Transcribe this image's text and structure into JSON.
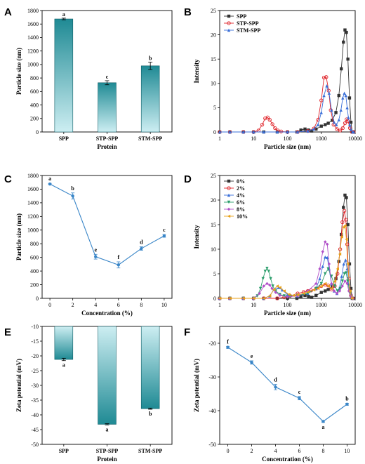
{
  "chart_data": [
    {
      "panel": "A",
      "type": "bar",
      "categories": [
        "SPP",
        "STP-SPP",
        "STM-SPP"
      ],
      "values": [
        1675,
        730,
        980
      ],
      "errors": [
        12,
        30,
        55
      ],
      "letters": [
        "a",
        "c",
        "b"
      ],
      "xlabel": "Protein",
      "ylabel": "Particle size (nm)",
      "ylim": [
        0,
        1800
      ],
      "yticks": [
        0,
        200,
        400,
        600,
        800,
        1000,
        1200,
        1400,
        1600,
        1800
      ],
      "bar_color": "#1f8a94"
    },
    {
      "panel": "B",
      "type": "line",
      "xscale": "log",
      "xlim": [
        1,
        10000
      ],
      "xticks": [
        1,
        10,
        100,
        1000,
        10000
      ],
      "ylim": [
        0,
        25
      ],
      "yticks": [
        0,
        5,
        10,
        15,
        20,
        25
      ],
      "xlabel": "Particle size (nm)",
      "ylabel": "Intensity",
      "legend": "top-left",
      "series": [
        {
          "name": "SPP",
          "color": "#333333",
          "marker": "square",
          "x": [
            1,
            2,
            5,
            10,
            20,
            50,
            100,
            190,
            250,
            330,
            420,
            520,
            700,
            1000,
            1300,
            1600,
            2100,
            2700,
            3300,
            3900,
            4500,
            5000,
            5500,
            6100,
            6800,
            7500,
            8200,
            9000
          ],
          "y": [
            0,
            0,
            0,
            0,
            0,
            0,
            0,
            0,
            0.4,
            0.6,
            0.4,
            0.2,
            0.6,
            1.2,
            1.5,
            1.8,
            2.4,
            4.0,
            7.5,
            13.0,
            18.5,
            21.0,
            20.5,
            15.0,
            7.0,
            2.0,
            0,
            0
          ]
        },
        {
          "name": "STP-SPP",
          "color": "#e0252b",
          "marker": "circle",
          "x": [
            1,
            2,
            5,
            10,
            14,
            18,
            22,
            26,
            30,
            36,
            43,
            52,
            65,
            100,
            200,
            400,
            600,
            800,
            1000,
            1200,
            1400,
            1650,
            1900,
            2300,
            2900,
            3600,
            4300,
            5000,
            5600,
            6200,
            7000,
            8000,
            9000
          ],
          "y": [
            0,
            0,
            0,
            0,
            0.3,
            1.5,
            2.8,
            3.0,
            2.5,
            1.6,
            0.8,
            0.3,
            0.1,
            0,
            0,
            0.2,
            0.7,
            2.5,
            6.5,
            11.2,
            11.3,
            8.5,
            4.5,
            1.5,
            0.6,
            0.3,
            0.8,
            1.8,
            2.6,
            2.2,
            0.8,
            0,
            0
          ]
        },
        {
          "name": "STM-SPP",
          "color": "#3a6fd8",
          "marker": "triangle",
          "x": [
            1,
            2,
            5,
            10,
            20,
            50,
            100,
            200,
            400,
            600,
            800,
            1000,
            1200,
            1450,
            1700,
            2000,
            2400,
            2800,
            3300,
            3800,
            4300,
            4800,
            5300,
            5800,
            6300,
            6900,
            7600,
            8400,
            9000
          ],
          "y": [
            0,
            0,
            0,
            0,
            0,
            0,
            0,
            0,
            0.2,
            0.6,
            1.5,
            4.0,
            7.5,
            9.5,
            8.0,
            4.5,
            2.0,
            1.5,
            2.5,
            4.5,
            7.0,
            8.0,
            7.5,
            5.0,
            3.0,
            1.5,
            0.5,
            0,
            0
          ]
        }
      ]
    },
    {
      "panel": "C",
      "type": "line",
      "x": [
        0,
        2,
        4,
        6,
        8,
        10
      ],
      "values": [
        1675,
        1500,
        610,
        490,
        730,
        915
      ],
      "errors": [
        10,
        45,
        35,
        45,
        25,
        20
      ],
      "letters": [
        "a",
        "b",
        "e",
        "f",
        "d",
        "c"
      ],
      "xlabel": "Concentration (%)",
      "ylabel": "Particle size (nm)",
      "xlim": [
        0,
        10
      ],
      "xticks": [
        0,
        2,
        4,
        6,
        8,
        10
      ],
      "ylim": [
        0,
        1800
      ],
      "yticks": [
        0,
        200,
        400,
        600,
        800,
        1000,
        1200,
        1400,
        1600,
        1800
      ],
      "color": "#3a86c8"
    },
    {
      "panel": "D",
      "type": "line",
      "xscale": "log",
      "xlim": [
        1,
        10000
      ],
      "xticks": [
        1,
        10,
        100,
        1000,
        10000
      ],
      "ylim": [
        0,
        25
      ],
      "yticks": [
        0,
        5,
        10,
        15,
        20,
        25
      ],
      "xlabel": "Particle size (nm)",
      "ylabel": "Intensity",
      "legend": "top-left",
      "series": [
        {
          "name": "0%",
          "color": "#333333",
          "marker": "square",
          "x": [
            1,
            2,
            5,
            10,
            20,
            50,
            100,
            190,
            250,
            330,
            420,
            520,
            700,
            1000,
            1300,
            1600,
            2100,
            2700,
            3300,
            3900,
            4500,
            5000,
            5500,
            6100,
            6800,
            7500,
            8200,
            9000
          ],
          "y": [
            0,
            0,
            0,
            0,
            0,
            0,
            0,
            0,
            0.4,
            0.6,
            0.4,
            0.2,
            0.6,
            1.2,
            1.5,
            1.8,
            2.4,
            4.0,
            7.5,
            13.0,
            18.5,
            21.0,
            20.5,
            15.0,
            7.0,
            2.0,
            0,
            0
          ]
        },
        {
          "name": "2%",
          "color": "#e0252b",
          "marker": "circle",
          "x": [
            1,
            2,
            5,
            10,
            20,
            50,
            80,
            120,
            200,
            300,
            400,
            500,
            700,
            1000,
            1300,
            1600,
            2000,
            2500,
            3000,
            3600,
            4200,
            4800,
            5300,
            5800,
            6500,
            7500,
            8500
          ],
          "y": [
            0,
            0,
            0,
            0,
            0,
            0,
            0.2,
            0.5,
            1.0,
            1.3,
            1.5,
            1.6,
            2.0,
            2.5,
            2.8,
            2.6,
            1.8,
            2.5,
            5.0,
            10.0,
            15.5,
            17.8,
            16.0,
            11.0,
            4.0,
            0.6,
            0
          ]
        },
        {
          "name": "4%",
          "color": "#3a6fd8",
          "marker": "triangle",
          "x": [
            1,
            2,
            5,
            10,
            20,
            30,
            40,
            55,
            70,
            100,
            200,
            400,
            700,
            900,
            1100,
            1300,
            1500,
            1700,
            2000,
            2400,
            2900,
            3400,
            4000,
            4600,
            5200,
            5800,
            6500,
            7500,
            8500
          ],
          "y": [
            0,
            0,
            0,
            0,
            0,
            0.5,
            1.8,
            2.2,
            1.7,
            0.8,
            0.5,
            1.0,
            2.0,
            4.0,
            6.5,
            8.4,
            8.3,
            6.0,
            3.0,
            1.5,
            1.0,
            2.0,
            4.5,
            7.0,
            7.8,
            6.0,
            3.0,
            0.8,
            0
          ]
        },
        {
          "name": "6%",
          "color": "#2a9d6a",
          "marker": "triangle-down",
          "x": [
            1,
            2,
            5,
            10,
            13,
            16,
            19,
            22,
            25,
            28,
            32,
            37,
            45,
            60,
            80,
            120,
            200,
            400,
            700,
            1000,
            1300,
            1600,
            2000,
            2500,
            3000,
            3600,
            4200,
            4800,
            5400,
            6000,
            7000,
            8000
          ],
          "y": [
            0,
            0,
            0,
            0,
            0.5,
            2.0,
            4.0,
            5.5,
            6.1,
            5.5,
            4.0,
            2.5,
            1.5,
            0.8,
            0.5,
            0.4,
            0.6,
            1.0,
            2.0,
            3.0,
            5.0,
            6.0,
            4.5,
            2.5,
            1.5,
            2.0,
            3.5,
            5.0,
            5.2,
            3.5,
            1.0,
            0
          ]
        },
        {
          "name": "8%",
          "color": "#b04fc8",
          "marker": "diamond",
          "x": [
            1,
            2,
            5,
            10,
            15,
            20,
            25,
            30,
            35,
            45,
            60,
            100,
            200,
            400,
            700,
            900,
            1100,
            1300,
            1500,
            1700,
            2000,
            2400,
            2900,
            3500,
            4200,
            5000,
            5800,
            6500,
            7500,
            8500
          ],
          "y": [
            0,
            0,
            0,
            0,
            1.0,
            2.5,
            3.0,
            2.7,
            2.0,
            1.2,
            0.6,
            0.3,
            0.5,
            1.5,
            3.0,
            6.0,
            9.5,
            11.5,
            11.0,
            7.0,
            3.0,
            1.5,
            1.0,
            1.5,
            2.5,
            3.5,
            3.0,
            1.5,
            0.3,
            0
          ]
        },
        {
          "name": "10%",
          "color": "#e8a21a",
          "marker": "triangle-left",
          "x": [
            1,
            2,
            5,
            10,
            20,
            30,
            40,
            50,
            60,
            80,
            110,
            150,
            200,
            300,
            400,
            600,
            800,
            1000,
            1300,
            1600,
            2000,
            2500,
            3000,
            3500,
            4000,
            4500,
            5000,
            5500,
            6000,
            7000,
            8000
          ],
          "y": [
            0,
            0,
            0,
            0,
            0,
            0.5,
            1.8,
            2.5,
            2.2,
            1.5,
            0.8,
            0.6,
            0.7,
            1.0,
            1.3,
            1.7,
            2.0,
            2.5,
            3.0,
            2.5,
            2.0,
            3.5,
            6.0,
            9.0,
            12.5,
            14.5,
            14.8,
            12.0,
            7.0,
            1.5,
            0
          ]
        }
      ]
    },
    {
      "panel": "E",
      "type": "bar",
      "categories": [
        "SPP",
        "STP-SPP",
        "STM-SPP"
      ],
      "values": [
        -21.2,
        -43.2,
        -37.9
      ],
      "errors": [
        0.4,
        0.2,
        0.2
      ],
      "letters": [
        "a",
        "a",
        "b"
      ],
      "xlabel": "Protein",
      "ylabel": "Zeta potential (mV)",
      "ylim": [
        -50,
        -10
      ],
      "yticks": [
        -50,
        -45,
        -40,
        -35,
        -30,
        -25,
        -20,
        -15,
        -10
      ],
      "bar_color": "#1f8a94"
    },
    {
      "panel": "F",
      "type": "line",
      "x": [
        0,
        2,
        4,
        6,
        8,
        10
      ],
      "values": [
        -21.2,
        -25.7,
        -33.0,
        -36.3,
        -43.2,
        -38.1
      ],
      "errors": [
        0.3,
        0.5,
        0.8,
        0.5,
        0.3,
        0.3
      ],
      "letters": [
        "f",
        "e",
        "d",
        "c",
        "a",
        "b"
      ],
      "xlabel": "Concentration (%)",
      "ylabel": "Zeta potential (mV)",
      "xlim": [
        0,
        10
      ],
      "xticks": [
        0,
        2,
        4,
        6,
        8,
        10
      ],
      "ylim": [
        -50,
        -15
      ],
      "yticks": [
        -50,
        -40,
        -30,
        -20
      ],
      "color": "#3a86c8"
    }
  ]
}
